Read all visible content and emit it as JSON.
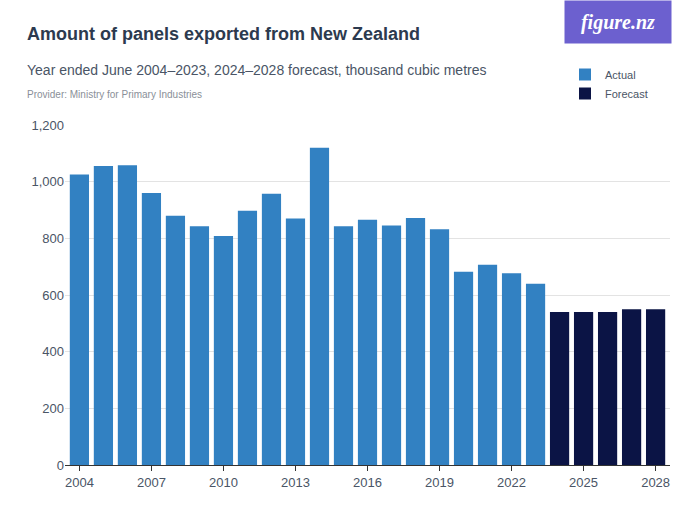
{
  "chart_data": {
    "type": "bar",
    "title": "Amount of panels exported from New Zealand",
    "subtitle": "Year ended June 2004–2023, 2024–2028 forecast, thousand cubic metres",
    "provider": "Provider: Ministry for Primary Industries",
    "logo": "figure.nz",
    "x": [
      2004,
      2005,
      2006,
      2007,
      2008,
      2009,
      2010,
      2011,
      2012,
      2013,
      2014,
      2015,
      2016,
      2017,
      2018,
      2019,
      2020,
      2021,
      2022,
      2023,
      2024,
      2025,
      2026,
      2027,
      2028
    ],
    "series": [
      {
        "name": "Actual",
        "color": "#3281c2",
        "values": [
          1025,
          1055,
          1058,
          960,
          880,
          843,
          808,
          897,
          957,
          870,
          1120,
          843,
          866,
          845,
          872,
          832,
          682,
          707,
          677,
          640,
          null,
          null,
          null,
          null,
          null
        ]
      },
      {
        "name": "Forecast",
        "color": "#0b1445",
        "values": [
          null,
          null,
          null,
          null,
          null,
          null,
          null,
          null,
          null,
          null,
          null,
          null,
          null,
          null,
          null,
          null,
          null,
          null,
          null,
          null,
          540,
          540,
          540,
          550,
          550
        ]
      }
    ],
    "xlim": [
      2003.4,
      2028.6
    ],
    "xticks": [
      2004,
      2007,
      2010,
      2013,
      2016,
      2019,
      2022,
      2025,
      2028
    ],
    "ylim": [
      0,
      1200
    ],
    "yticks": [
      0,
      200,
      400,
      600,
      800,
      {
        "value": 1000,
        "label": "1,000"
      },
      {
        "value": 1200,
        "label": "1,200"
      }
    ],
    "grid": true,
    "legend": "top right"
  }
}
